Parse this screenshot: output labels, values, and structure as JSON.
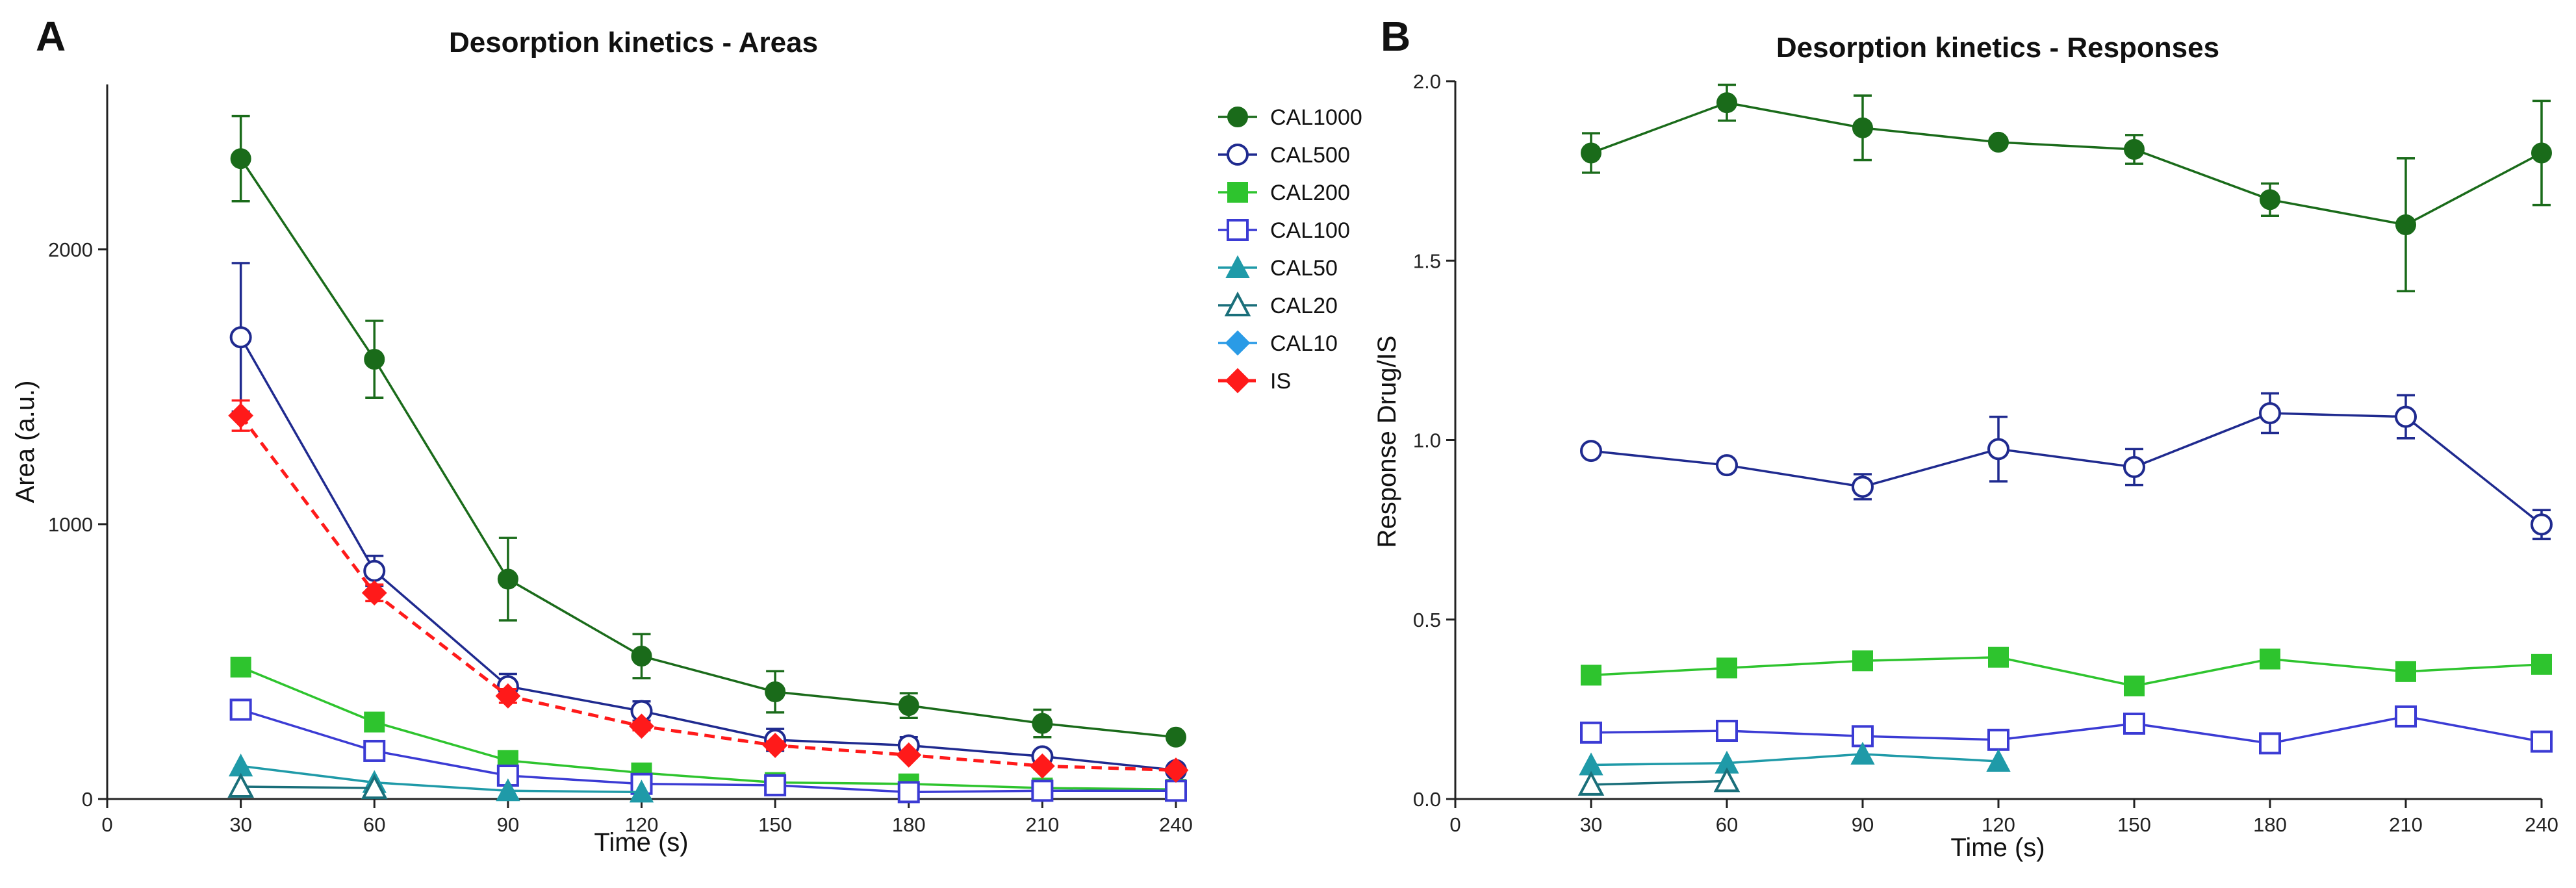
{
  "figure": {
    "panel_a_letter": "A",
    "panel_b_letter": "B"
  },
  "chart_data": [
    {
      "type": "line",
      "title": "Desorption kinetics - Areas",
      "xlabel": "Time (s)",
      "ylabel": "Area (a.u.)",
      "xlim": [
        0,
        240
      ],
      "ylim": [
        0,
        2600
      ],
      "xticks": [
        0,
        30,
        60,
        90,
        120,
        150,
        180,
        210,
        240
      ],
      "yticks": [
        0,
        1000,
        2000
      ],
      "legend_position": "right",
      "series": [
        {
          "name": "CAL1000",
          "color": "#1a6b1a",
          "marker": "circle-filled",
          "dashed": false,
          "x": [
            30,
            60,
            90,
            120,
            150,
            180,
            210,
            240
          ],
          "y": [
            2330,
            1600,
            800,
            520,
            390,
            340,
            275,
            225
          ],
          "err": [
            155,
            140,
            150,
            80,
            75,
            45,
            50,
            15
          ]
        },
        {
          "name": "CAL500",
          "color": "#1f2a8f",
          "marker": "circle-open",
          "dashed": false,
          "x": [
            30,
            60,
            90,
            120,
            150,
            180,
            210,
            240
          ],
          "y": [
            1680,
            830,
            410,
            320,
            215,
            195,
            155,
            105
          ],
          "err": [
            270,
            55,
            45,
            35,
            40,
            30,
            20,
            15
          ]
        },
        {
          "name": "CAL200",
          "color": "#2ec42e",
          "marker": "square-filled",
          "dashed": false,
          "x": [
            30,
            60,
            90,
            120,
            150,
            180,
            210,
            240
          ],
          "y": [
            480,
            280,
            140,
            95,
            60,
            55,
            40,
            35
          ],
          "err": [
            0,
            0,
            0,
            0,
            0,
            0,
            0,
            0
          ]
        },
        {
          "name": "CAL100",
          "color": "#3b3bd4",
          "marker": "square-open",
          "dashed": false,
          "x": [
            30,
            60,
            90,
            120,
            150,
            180,
            210,
            240
          ],
          "y": [
            325,
            175,
            85,
            55,
            50,
            25,
            30,
            30
          ],
          "err": [
            0,
            0,
            0,
            0,
            0,
            0,
            0,
            0
          ]
        },
        {
          "name": "CAL50",
          "color": "#1f9aa8",
          "marker": "triangle-filled",
          "dashed": false,
          "x": [
            30,
            60,
            90,
            120
          ],
          "y": [
            120,
            60,
            30,
            25
          ],
          "err": [
            0,
            0,
            0,
            0
          ]
        },
        {
          "name": "CAL20",
          "color": "#1a6f7a",
          "marker": "triangle-open",
          "dashed": false,
          "x": [
            30,
            60
          ],
          "y": [
            45,
            40
          ],
          "err": [
            0,
            0
          ]
        },
        {
          "name": "CAL10",
          "color": "#2a9be6",
          "marker": "diamond-filled",
          "dashed": false,
          "x": [],
          "y": [],
          "err": []
        },
        {
          "name": "IS",
          "color": "#ff1a1a",
          "marker": "diamond-filled",
          "dashed": true,
          "x": [
            30,
            60,
            90,
            120,
            150,
            180,
            210,
            240
          ],
          "y": [
            1395,
            750,
            375,
            265,
            195,
            160,
            120,
            105
          ],
          "err": [
            55,
            30,
            25,
            15,
            15,
            10,
            10,
            5
          ]
        }
      ]
    },
    {
      "type": "line",
      "title": "Desorption kinetics - Responses",
      "xlabel": "Time (s)",
      "ylabel": "Response Drug/IS",
      "xlim": [
        0,
        240
      ],
      "ylim": [
        0,
        2.0
      ],
      "xticks": [
        0,
        30,
        60,
        90,
        120,
        150,
        180,
        210,
        240
      ],
      "yticks": [
        "0.0",
        "0.5",
        "1.0",
        "1.5",
        "2.0"
      ],
      "series": [
        {
          "name": "CAL1000",
          "color": "#1a6b1a",
          "marker": "circle-filled",
          "dashed": false,
          "x": [
            30,
            60,
            90,
            120,
            150,
            180,
            210,
            240
          ],
          "y": [
            1.8,
            1.94,
            1.87,
            1.83,
            1.81,
            1.67,
            1.6,
            1.8
          ],
          "err": [
            0.055,
            0.05,
            0.09,
            0,
            0.04,
            0.045,
            0.185,
            0.145
          ]
        },
        {
          "name": "CAL500",
          "color": "#1f2a8f",
          "marker": "circle-open",
          "dashed": false,
          "x": [
            30,
            60,
            90,
            120,
            150,
            180,
            210,
            240
          ],
          "y": [
            0.97,
            0.93,
            0.87,
            0.975,
            0.925,
            1.075,
            1.065,
            0.765
          ],
          "err": [
            0,
            0,
            0.035,
            0.09,
            0.05,
            0.055,
            0.06,
            0.04
          ]
        },
        {
          "name": "CAL200",
          "color": "#2ec42e",
          "marker": "square-filled",
          "dashed": false,
          "x": [
            30,
            60,
            90,
            120,
            150,
            180,
            210,
            240
          ],
          "y": [
            0.345,
            0.365,
            0.385,
            0.395,
            0.315,
            0.39,
            0.355,
            0.375
          ],
          "err": [
            0,
            0,
            0,
            0,
            0,
            0,
            0,
            0
          ]
        },
        {
          "name": "CAL100",
          "color": "#3b3bd4",
          "marker": "square-open",
          "dashed": false,
          "x": [
            30,
            60,
            90,
            120,
            150,
            180,
            210,
            240
          ],
          "y": [
            0.185,
            0.19,
            0.175,
            0.165,
            0.21,
            0.155,
            0.23,
            0.16
          ],
          "err": [
            0,
            0,
            0,
            0,
            0,
            0,
            0,
            0
          ]
        },
        {
          "name": "CAL50",
          "color": "#1f9aa8",
          "marker": "triangle-filled",
          "dashed": false,
          "x": [
            30,
            60,
            90,
            120
          ],
          "y": [
            0.095,
            0.1,
            0.125,
            0.105
          ],
          "err": [
            0,
            0,
            0,
            0
          ]
        },
        {
          "name": "CAL20",
          "color": "#1a6f7a",
          "marker": "triangle-open",
          "dashed": false,
          "x": [
            30,
            60
          ],
          "y": [
            0.04,
            0.05
          ],
          "err": [
            0,
            0
          ]
        }
      ]
    }
  ]
}
